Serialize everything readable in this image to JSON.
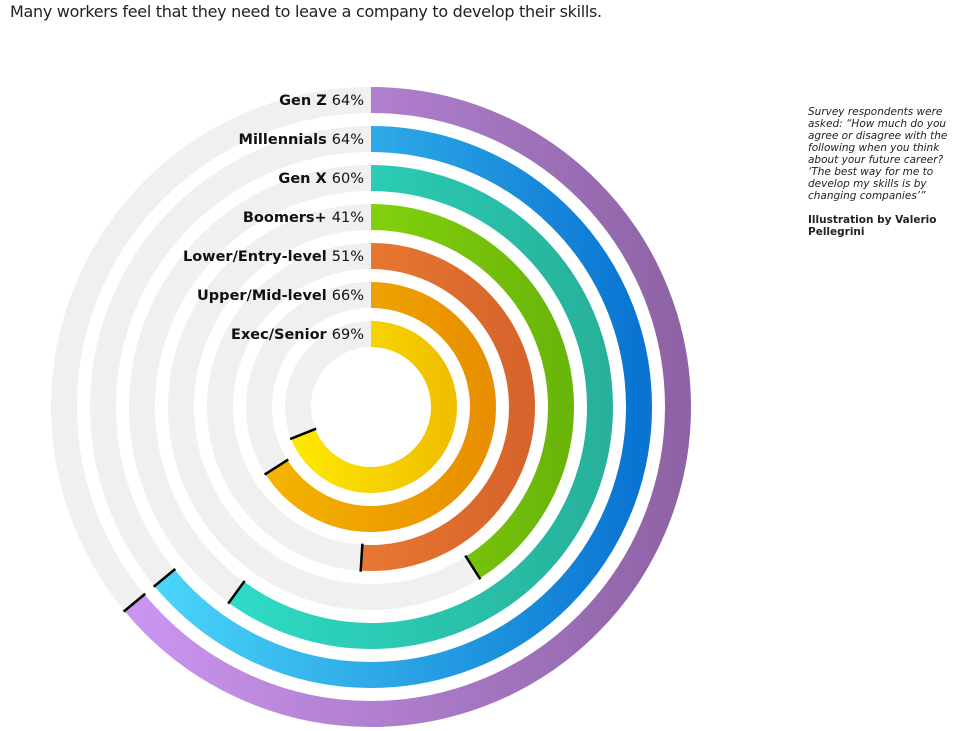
{
  "title": "Many workers feel that they need to leave a company to develop their skills.",
  "note": {
    "question": "Survey respondents were asked: “How much do you agree or disagree with the following when you think about your future career? ‘The best way for me to develop my skills is by changing companies’”",
    "credit": "Illustration by Valerio Pellegrini"
  },
  "chart_data": {
    "type": "radial-bar",
    "title": "Many workers feel that they need to leave a company to develop their skills.",
    "unit": "%",
    "max": 100,
    "track_color": "#f0f0f0",
    "series": [
      {
        "name": "Gen Z",
        "value": 64,
        "label": "64%",
        "colors": [
          "#d39cf9",
          "#8e63a5"
        ]
      },
      {
        "name": "Millennials",
        "value": 64,
        "label": "64%",
        "colors": [
          "#52e0fd",
          "#0a74d2"
        ]
      },
      {
        "name": "Gen X",
        "value": 60,
        "label": "60%",
        "colors": [
          "#30e6d0",
          "#27b19a"
        ]
      },
      {
        "name": "Boomers+",
        "value": 41,
        "label": "41%",
        "colors": [
          "#9cec10",
          "#6ab50a"
        ]
      },
      {
        "name": "Lower/Entry-level",
        "value": 51,
        "label": "51%",
        "colors": [
          "#f7893a",
          "#d7642a"
        ]
      },
      {
        "name": "Upper/Mid-level",
        "value": 66,
        "label": "66%",
        "colors": [
          "#f5b500",
          "#e88f00"
        ]
      },
      {
        "name": "Exec/Senior",
        "value": 69,
        "label": "69%",
        "colors": [
          "#fde800",
          "#f0c000"
        ]
      }
    ]
  }
}
